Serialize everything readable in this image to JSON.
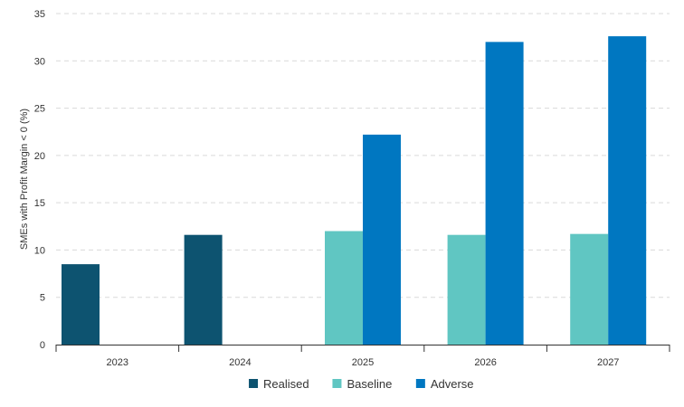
{
  "chart_data": {
    "type": "bar",
    "title": "",
    "xlabel": "",
    "ylabel": "SMEs with Profit Margin < 0 (%)",
    "categories": [
      "2023",
      "2024",
      "2025",
      "2026",
      "2027"
    ],
    "ylim": [
      0,
      35
    ],
    "yticks": [
      0,
      5,
      10,
      15,
      20,
      25,
      30,
      35
    ],
    "grid": true,
    "legend_position": "bottom-center",
    "series": [
      {
        "name": "Realised",
        "color": "#0d5370",
        "values": [
          8.5,
          11.6,
          null,
          null,
          null
        ]
      },
      {
        "name": "Baseline",
        "color": "#60c6c2",
        "values": [
          null,
          null,
          12.0,
          11.6,
          11.7
        ]
      },
      {
        "name": "Adverse",
        "color": "#0077c1",
        "values": [
          null,
          null,
          22.2,
          32.0,
          32.6
        ]
      }
    ]
  }
}
